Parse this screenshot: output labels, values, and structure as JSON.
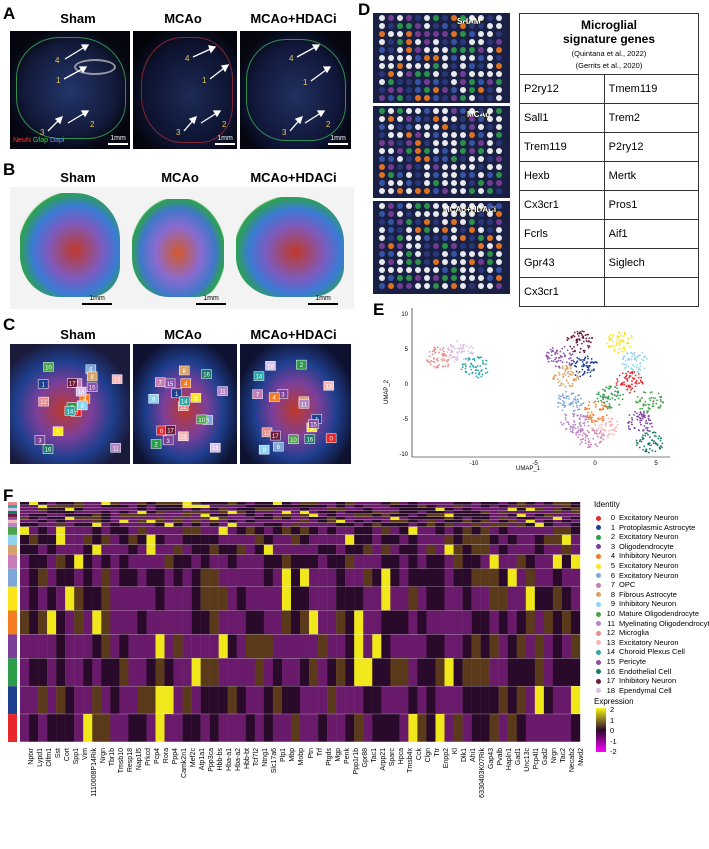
{
  "panels": {
    "A": {
      "letter": "A",
      "conditions": [
        "Sham",
        "MCAo",
        "MCAo+HDACi"
      ],
      "stain_legend": [
        {
          "label": "NeuN",
          "color": "#ff3333"
        },
        {
          "label": "Gfap",
          "color": "#33dd33"
        },
        {
          "label": "Dapi",
          "color": "#6688ff"
        }
      ],
      "scalebars": [
        "1mm",
        "1mm",
        "1mm"
      ],
      "region_numbers": [
        "1",
        "2",
        "3",
        "4"
      ]
    },
    "B": {
      "letter": "B",
      "conditions": [
        "Sham",
        "MCAo",
        "MCAo+HDACi"
      ],
      "scalebars": [
        "1mm",
        "1mm",
        "1mm"
      ]
    },
    "C": {
      "letter": "C",
      "conditions": [
        "Sham",
        "MCAo",
        "MCAo+HDACi"
      ],
      "cluster_labels": [
        "0",
        "1",
        "2",
        "3",
        "4",
        "5",
        "6",
        "7",
        "8",
        "9",
        "10",
        "11",
        "12",
        "13",
        "14",
        "15",
        "16",
        "17",
        "18"
      ]
    },
    "D": {
      "letter": "D",
      "image_labels": [
        "SHAM",
        "MCAo",
        "MCAo+HDACi"
      ],
      "table": {
        "title_line1": "Microglial",
        "title_line2": "signature genes",
        "ref1": "(Quintana et al., 2022)",
        "ref2": "(Gerrits et al., 2020)",
        "rows": [
          [
            "P2ry12",
            "Tmem119"
          ],
          [
            "Sall1",
            "Trem2"
          ],
          [
            "Trem119",
            "P2ry12"
          ],
          [
            "Hexb",
            "Mertk"
          ],
          [
            "Cx3cr1",
            "Pros1"
          ],
          [
            "Fcrls",
            "Aif1"
          ],
          [
            "Gpr43",
            "Siglech"
          ],
          [
            "Cx3cr1",
            ""
          ]
        ]
      }
    },
    "E": {
      "letter": "E",
      "xlabel": "UMAP_1",
      "ylabel": "UMAP_2",
      "xticks": [
        "-10",
        "-5",
        "0",
        "5"
      ],
      "yticks": [
        "10",
        "5",
        "0",
        "-5",
        "-10"
      ]
    },
    "F": {
      "letter": "F",
      "identity_title": "Identity",
      "expression_title": "Expression",
      "expression_ticks": [
        "2",
        "1",
        "0",
        "-1",
        "-2"
      ],
      "genes": [
        "Nptxr",
        "Lypd1",
        "Olfm1",
        "Sst",
        "Cort",
        "Spp1",
        "Vim",
        "1110008P14Rik",
        "Nrgn",
        "Tbr1b",
        "Tmsb10",
        "Resp18",
        "Nap1l5",
        "Prkcd",
        "Pcp4",
        "Rora",
        "Ppp4",
        "Camk2n1",
        "Mef2c",
        "Atp1a1",
        "Ppp3ca",
        "Hbb-bs",
        "Hba-a1",
        "Hba-a2",
        "Hbb-bt",
        "Tcf7l2",
        "Ntng1",
        "Slc17a6",
        "Plp1",
        "Mbp",
        "Mobp",
        "Ptn",
        "Trf",
        "Ptgds",
        "Mgp",
        "Penk",
        "Ppp1r1b",
        "Gpr88",
        "Tac1",
        "Arpp21",
        "Sparc",
        "Hpca",
        "Tmsb4x",
        "Cck",
        "Clgn",
        "Ttr",
        "Enpp2",
        "Kl",
        "Dlk1",
        "Ahi1",
        "6330403K07Rik",
        "Gap43",
        "Pvalb",
        "Hapln1",
        "Gad1",
        "Unc13c",
        "Pcp4l1",
        "Gad2",
        "Nrgn",
        "Tac2",
        "Necab2",
        "Nwd2"
      ],
      "identities": [
        {
          "num": "0",
          "label": "Excitatory Neuron",
          "color": "#e8262c"
        },
        {
          "num": "1",
          "label": "Protoplasmic Astrocyte",
          "color": "#1f3f8f"
        },
        {
          "num": "2",
          "label": "Excitatory Neuron",
          "color": "#2c9e4a"
        },
        {
          "num": "3",
          "label": "Oligodendrocyte",
          "color": "#7b3f9a"
        },
        {
          "num": "4",
          "label": "Inhibitory Neuron",
          "color": "#f47b20"
        },
        {
          "num": "5",
          "label": "Excitatory Neuron",
          "color": "#f9e51a"
        },
        {
          "num": "6",
          "label": "Excitatory Neuron",
          "color": "#7da7d8"
        },
        {
          "num": "7",
          "label": "OPC",
          "color": "#c77db8"
        },
        {
          "num": "8",
          "label": "Fibrous Astrocyte",
          "color": "#d8a36a"
        },
        {
          "num": "9",
          "label": "Inhibitory Neuron",
          "color": "#8fd3f0"
        },
        {
          "num": "10",
          "label": "Mature Oligodendrocyte",
          "color": "#4aa34a"
        },
        {
          "num": "11",
          "label": "Myelinating Oligodendrocyte",
          "color": "#b385c4"
        },
        {
          "num": "12",
          "label": "Microglia",
          "color": "#e88a8a"
        },
        {
          "num": "13",
          "label": "Excitatory Neuron",
          "color": "#f5b7b7"
        },
        {
          "num": "14",
          "label": "Choroid Plexus Cell",
          "color": "#2aa6a6"
        },
        {
          "num": "15",
          "label": "Pericyte",
          "color": "#8a4fa8"
        },
        {
          "num": "16",
          "label": "Endothelial Cell",
          "color": "#1a7a6a"
        },
        {
          "num": "17",
          "label": "Inhibitory Neuron",
          "color": "#6b1a3a"
        },
        {
          "num": "18",
          "label": "Ependymal Cell",
          "color": "#d9c0e6"
        }
      ]
    }
  }
}
